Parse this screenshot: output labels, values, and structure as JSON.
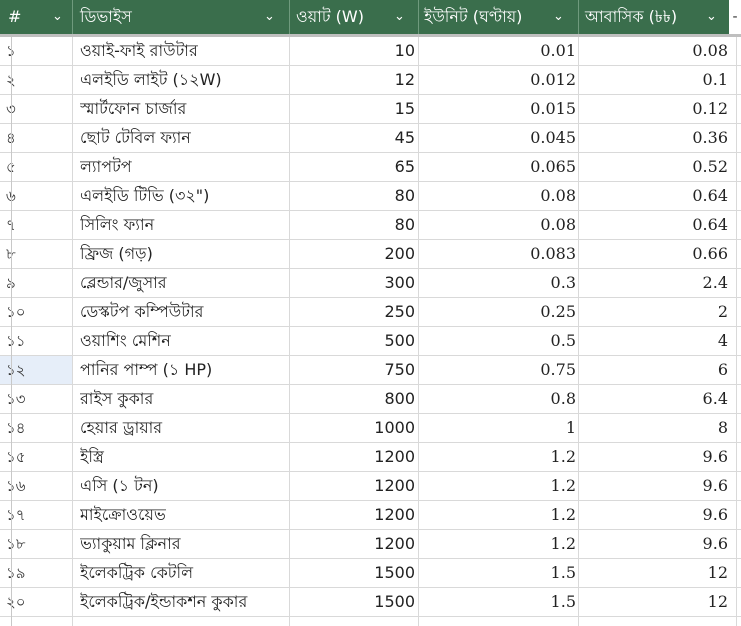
{
  "table": {
    "headers": {
      "num": "#",
      "device": "ডিভাইস",
      "watt": "ওয়াট (W)",
      "unit": "ইউনিট (ঘণ্টায়)",
      "residential": "আবাসিক (৳৳)"
    },
    "dropdown_glyph": "⌄",
    "rows": [
      {
        "num": "১",
        "device": "ওয়াই-ফাই রাউটার",
        "watt": "10",
        "unit": "0.01",
        "residential": "0.08"
      },
      {
        "num": "২",
        "device": "এলইডি লাইট (১২W)",
        "watt": "12",
        "unit": "0.012",
        "residential": "0.1"
      },
      {
        "num": "৩",
        "device": "স্মার্টফোন চার্জার",
        "watt": "15",
        "unit": "0.015",
        "residential": "0.12"
      },
      {
        "num": "৪",
        "device": "ছোট টেবিল ফ্যান",
        "watt": "45",
        "unit": "0.045",
        "residential": "0.36"
      },
      {
        "num": "৫",
        "device": "ল্যাপটপ",
        "watt": "65",
        "unit": "0.065",
        "residential": "0.52"
      },
      {
        "num": "৬",
        "device": "এলইডি টিভি (৩২\")",
        "watt": "80",
        "unit": "0.08",
        "residential": "0.64"
      },
      {
        "num": "৭",
        "device": "সিলিং ফ্যান",
        "watt": "80",
        "unit": "0.08",
        "residential": "0.64"
      },
      {
        "num": "৮",
        "device": "ফ্রিজ (গড়)",
        "watt": "200",
        "unit": "0.083",
        "residential": "0.66"
      },
      {
        "num": "৯",
        "device": "ব্লেন্ডার/জুসার",
        "watt": "300",
        "unit": "0.3",
        "residential": "2.4"
      },
      {
        "num": "১০",
        "device": "ডেস্কটপ কম্পিউটার",
        "watt": "250",
        "unit": "0.25",
        "residential": "2"
      },
      {
        "num": "১১",
        "device": "ওয়াশিং মেশিন",
        "watt": "500",
        "unit": "0.5",
        "residential": "4"
      },
      {
        "num": "১২",
        "device": "পানির পাম্প (১ HP)",
        "watt": "750",
        "unit": "0.75",
        "residential": "6"
      },
      {
        "num": "১৩",
        "device": "রাইস কুকার",
        "watt": "800",
        "unit": "0.8",
        "residential": "6.4"
      },
      {
        "num": "১৪",
        "device": "হেয়ার ড্রায়ার",
        "watt": "1000",
        "unit": "1",
        "residential": "8"
      },
      {
        "num": "১৫",
        "device": "ইস্ত্রি",
        "watt": "1200",
        "unit": "1.2",
        "residential": "9.6"
      },
      {
        "num": "১৬",
        "device": "এসি (১ টন)",
        "watt": "1200",
        "unit": "1.2",
        "residential": "9.6"
      },
      {
        "num": "১৭",
        "device": "মাইক্রোওয়েভ",
        "watt": "1200",
        "unit": "1.2",
        "residential": "9.6"
      },
      {
        "num": "১৮",
        "device": "ভ্যাকুয়াম ক্লিনার",
        "watt": "1200",
        "unit": "1.2",
        "residential": "9.6"
      },
      {
        "num": "১৯",
        "device": "ইলেকট্রিক কেটলি",
        "watt": "1500",
        "unit": "1.5",
        "residential": "12"
      },
      {
        "num": "২০",
        "device": "ইলেকট্রিক/ইন্ডাকশন কুকার",
        "watt": "1500",
        "unit": "1.5",
        "residential": "12"
      }
    ],
    "selected_row_index": 11
  },
  "colors": {
    "header_bg": "#3a6e4c",
    "header_text": "#ffffff",
    "grid": "#d9d9d9",
    "selected_row_num_bg": "#e6eef9"
  }
}
